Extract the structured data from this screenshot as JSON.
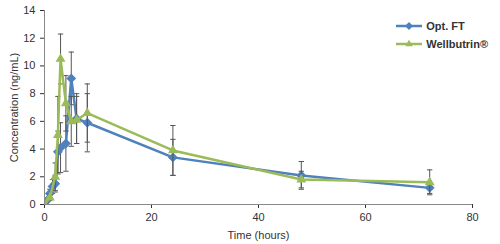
{
  "chart_data": {
    "type": "line",
    "x_label": "Time (hours)",
    "y_label": "Concentration (ng/mL)",
    "xlim": [
      0,
      80
    ],
    "xticks": [
      0,
      20,
      40,
      60,
      80
    ],
    "ylim": [
      0,
      14
    ],
    "yticks": [
      0,
      2,
      4,
      6,
      8,
      10,
      12,
      14
    ],
    "grid": false,
    "legend": "top-right",
    "series": [
      {
        "name": "Opt. FT",
        "color": "#4f81bd",
        "marker": "diamond",
        "x": [
          0,
          0.5,
          1,
          1.5,
          2,
          2.5,
          3,
          4,
          5,
          6,
          8,
          24,
          48,
          72
        ],
        "values": [
          0,
          0.3,
          0.8,
          1.3,
          1.5,
          3.8,
          4.1,
          4.4,
          9.1,
          6.2,
          5.9,
          3.4,
          2.1,
          1.2
        ],
        "errors": [
          0,
          0.1,
          0.3,
          0.5,
          0.6,
          1.5,
          1.8,
          2.0,
          1.9,
          1.8,
          2.1,
          1.3,
          1.0,
          0.4
        ]
      },
      {
        "name": "Wellbutrin®",
        "color": "#9bbb59",
        "marker": "triangle",
        "x": [
          0,
          1,
          2,
          2.5,
          3,
          4,
          5,
          6,
          8,
          24,
          48,
          72
        ],
        "values": [
          0,
          0.5,
          2.0,
          5.0,
          10.5,
          7.3,
          6.0,
          6.1,
          6.6,
          3.9,
          1.8,
          1.6
        ],
        "errors": [
          0,
          0.2,
          1.0,
          2.8,
          1.8,
          2.0,
          1.8,
          1.7,
          2.1,
          1.8,
          0.6,
          0.9
        ]
      }
    ]
  }
}
